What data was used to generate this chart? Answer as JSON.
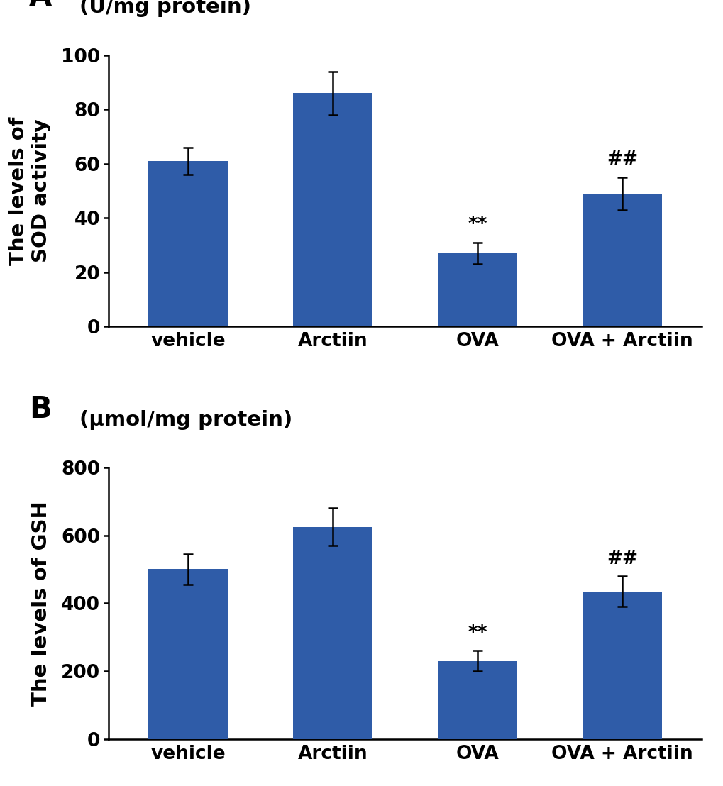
{
  "panel_A": {
    "label": "A",
    "unit_label": "(U/mg protein)",
    "ylabel": "The levels of\nSOD activity",
    "categories": [
      "vehicle",
      "Arctiin",
      "OVA",
      "OVA + Arctiin"
    ],
    "values": [
      61,
      86,
      27,
      49
    ],
    "errors": [
      5,
      8,
      4,
      6
    ],
    "ylim": [
      0,
      100
    ],
    "yticks": [
      0,
      20,
      40,
      60,
      80,
      100
    ],
    "sig_labels": [
      "",
      "",
      "**",
      "##"
    ],
    "bar_color": "#2f5ca8",
    "bar_width": 0.55
  },
  "panel_B": {
    "label": "B",
    "unit_label": "(μmol/mg protein)",
    "ylabel": "The levels of GSH",
    "categories": [
      "vehicle",
      "Arctiin",
      "OVA",
      "OVA + Arctiin"
    ],
    "values": [
      500,
      625,
      230,
      435
    ],
    "errors": [
      45,
      55,
      30,
      45
    ],
    "ylim": [
      0,
      800
    ],
    "yticks": [
      0,
      200,
      400,
      600,
      800
    ],
    "sig_labels": [
      "",
      "",
      "**",
      "##"
    ],
    "bar_color": "#2f5ca8",
    "bar_width": 0.55
  },
  "background_color": "#ffffff",
  "tick_fontsize": 19,
  "ylabel_fontsize": 21,
  "unit_fontsize": 21,
  "sig_fontsize": 19,
  "panel_letter_fontsize": 30
}
